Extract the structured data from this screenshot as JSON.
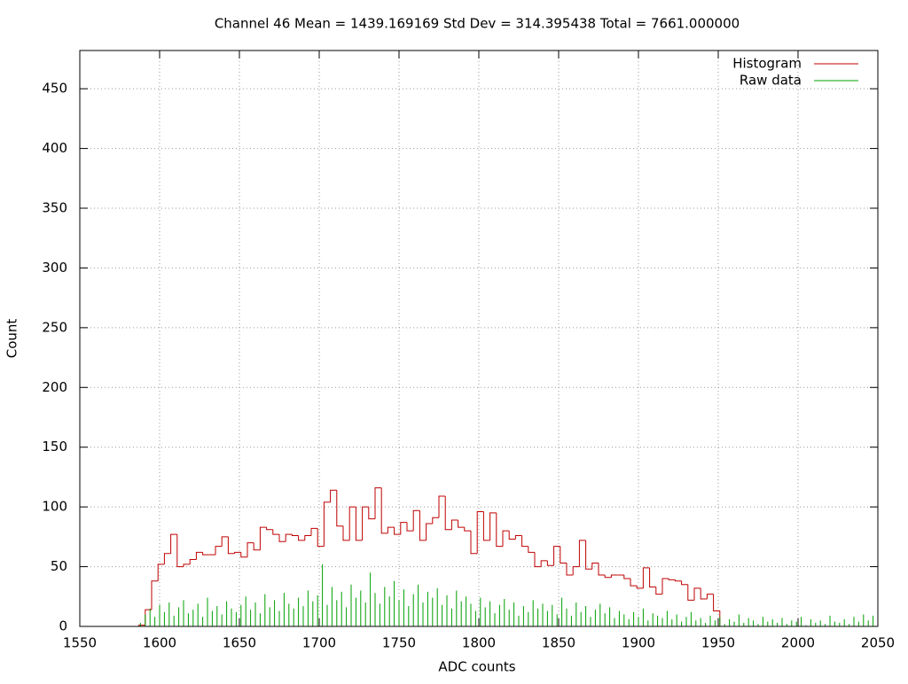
{
  "chart_data": {
    "type": "line",
    "title": "Channel 46  Mean = 1439.169169  Std Dev = 314.395438  Total = 7661.000000",
    "x_label": "ADC counts",
    "y_label": "Count",
    "xlim": [
      1550,
      2050
    ],
    "xticks": [
      1550,
      1600,
      1650,
      1700,
      1750,
      1800,
      1850,
      1900,
      1950,
      2000,
      2050
    ],
    "ylim": [
      0,
      482
    ],
    "yticks": [
      0,
      50,
      100,
      150,
      200,
      250,
      300,
      350,
      400,
      450
    ],
    "grid": true,
    "legend": "top-right",
    "series": [
      {
        "name": "Histogram",
        "color": "#c00000",
        "style": "steps",
        "bins": [
          1587,
          1591,
          1595,
          1599,
          1603,
          1607,
          1611,
          1615,
          1619,
          1623,
          1627,
          1631,
          1635,
          1639,
          1643,
          1647,
          1651,
          1655,
          1659,
          1663,
          1667,
          1671,
          1675,
          1679,
          1683,
          1687,
          1691,
          1695,
          1699,
          1703,
          1707,
          1711,
          1715,
          1719,
          1723,
          1727,
          1731,
          1735,
          1739,
          1743,
          1747,
          1751,
          1755,
          1759,
          1763,
          1767,
          1771,
          1775,
          1779,
          1783,
          1787,
          1791,
          1795,
          1799,
          1803,
          1807,
          1811,
          1815,
          1819,
          1823,
          1827,
          1831,
          1835,
          1839,
          1843,
          1847,
          1851,
          1855,
          1859,
          1863,
          1867,
          1871,
          1875,
          1879,
          1883,
          1887,
          1891,
          1895,
          1899,
          1903,
          1907,
          1911,
          1915,
          1919,
          1923,
          1927,
          1931,
          1935,
          1939,
          1943,
          1947,
          1951
        ],
        "values": [
          1,
          14,
          38,
          52,
          61,
          77,
          50,
          52,
          56,
          62,
          60,
          60,
          67,
          75,
          61,
          62,
          58,
          70,
          64,
          83,
          81,
          77,
          71,
          77,
          76,
          72,
          76,
          82,
          67,
          104,
          114,
          84,
          72,
          100,
          72,
          100,
          90,
          116,
          78,
          83,
          77,
          87,
          80,
          97,
          72,
          86,
          91,
          109,
          81,
          89,
          83,
          80,
          61,
          96,
          72,
          95,
          67,
          80,
          73,
          76,
          67,
          62,
          50,
          55,
          51,
          67,
          53,
          43,
          50,
          72,
          48,
          53,
          43,
          41,
          43,
          43,
          40,
          34,
          32,
          49,
          33,
          27,
          40,
          39,
          38,
          35,
          22,
          32,
          23,
          27,
          13
        ]
      },
      {
        "name": "Raw data",
        "color": "#00a000",
        "style": "impulses",
        "x": [
          1588,
          1591,
          1594,
          1597,
          1600,
          1603,
          1606,
          1609,
          1612,
          1615,
          1618,
          1621,
          1624,
          1627,
          1630,
          1633,
          1636,
          1639,
          1642,
          1645,
          1648,
          1651,
          1654,
          1657,
          1660,
          1663,
          1666,
          1669,
          1672,
          1675,
          1678,
          1681,
          1684,
          1687,
          1690,
          1693,
          1696,
          1699,
          1702,
          1705,
          1708,
          1711,
          1714,
          1717,
          1720,
          1723,
          1726,
          1729,
          1732,
          1735,
          1738,
          1741,
          1744,
          1747,
          1750,
          1753,
          1756,
          1759,
          1762,
          1765,
          1768,
          1771,
          1774,
          1777,
          1780,
          1783,
          1786,
          1789,
          1792,
          1795,
          1798,
          1801,
          1804,
          1807,
          1810,
          1813,
          1816,
          1819,
          1822,
          1825,
          1828,
          1831,
          1834,
          1837,
          1840,
          1843,
          1846,
          1849,
          1852,
          1855,
          1858,
          1861,
          1864,
          1867,
          1870,
          1873,
          1876,
          1879,
          1882,
          1885,
          1888,
          1891,
          1894,
          1897,
          1900,
          1903,
          1906,
          1909,
          1912,
          1915,
          1918,
          1921,
          1924,
          1927,
          1930,
          1933,
          1936,
          1939,
          1942,
          1945,
          1948,
          1951,
          1954,
          1957,
          1960,
          1963,
          1966,
          1969,
          1972,
          1975,
          1978,
          1981,
          1984,
          1987,
          1990,
          1993,
          1996,
          1999,
          2002,
          2005,
          2008,
          2011,
          2014,
          2017,
          2020,
          2023,
          2026,
          2029,
          2032,
          2035,
          2038,
          2041,
          2044,
          2047
        ],
        "values": [
          3,
          10,
          15,
          8,
          18,
          12,
          20,
          9,
          16,
          22,
          11,
          14,
          19,
          8,
          24,
          13,
          17,
          10,
          21,
          15,
          12,
          18,
          25,
          14,
          20,
          11,
          27,
          16,
          22,
          13,
          28,
          19,
          15,
          24,
          17,
          30,
          21,
          26,
          52,
          18,
          33,
          22,
          29,
          16,
          35,
          24,
          30,
          20,
          45,
          28,
          19,
          33,
          25,
          38,
          22,
          31,
          17,
          27,
          35,
          20,
          29,
          24,
          32,
          18,
          26,
          15,
          30,
          21,
          25,
          19,
          13,
          24,
          16,
          21,
          11,
          18,
          23,
          14,
          20,
          9,
          17,
          12,
          22,
          15,
          19,
          13,
          18,
          10,
          24,
          15,
          9,
          20,
          12,
          17,
          8,
          14,
          19,
          11,
          16,
          7,
          13,
          10,
          6,
          12,
          8,
          15,
          5,
          11,
          9,
          7,
          13,
          6,
          10,
          4,
          8,
          12,
          5,
          7,
          3,
          9,
          5,
          8,
          2,
          6,
          4,
          10,
          3,
          7,
          5,
          2,
          8,
          4,
          6,
          3,
          7,
          2,
          5,
          4,
          8,
          1,
          6,
          3,
          5,
          2,
          9,
          4,
          3,
          6,
          2,
          8,
          4,
          10,
          5,
          9
        ]
      }
    ]
  }
}
